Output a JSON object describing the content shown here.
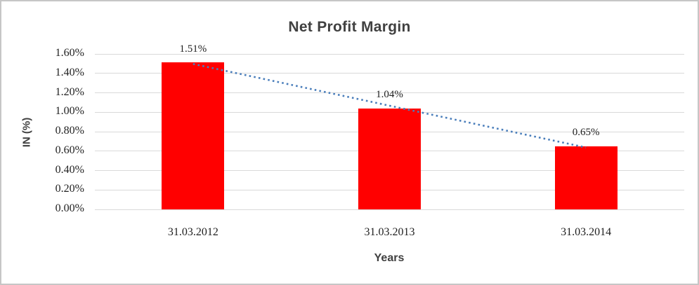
{
  "chart_data": {
    "type": "bar",
    "title": "Net Profit Margin",
    "xlabel": "Years",
    "ylabel": "IN (%)",
    "categories": [
      "31.03.2012",
      "31.03.2013",
      "31.03.2014"
    ],
    "values": [
      1.51,
      1.04,
      0.65
    ],
    "value_labels": [
      "1.51%",
      "1.04%",
      "0.65%"
    ],
    "ylim": [
      0,
      1.6
    ],
    "ytick_step": 0.2,
    "ytick_labels": [
      "0.00%",
      "0.20%",
      "0.40%",
      "0.60%",
      "0.80%",
      "1.00%",
      "1.20%",
      "1.40%",
      "1.60%"
    ],
    "grid": true,
    "legend": "none",
    "bar_color": "#FF0000",
    "gridline_color": "#D9D9D9",
    "title_color": "#404040",
    "axis_title_color": "#404040",
    "tick_label_color": "#1F1F1F",
    "trendline": {
      "type": "linear",
      "style": "dotted",
      "color": "#4A7EBB",
      "y_start": 1.497,
      "y_end": 0.637
    }
  }
}
